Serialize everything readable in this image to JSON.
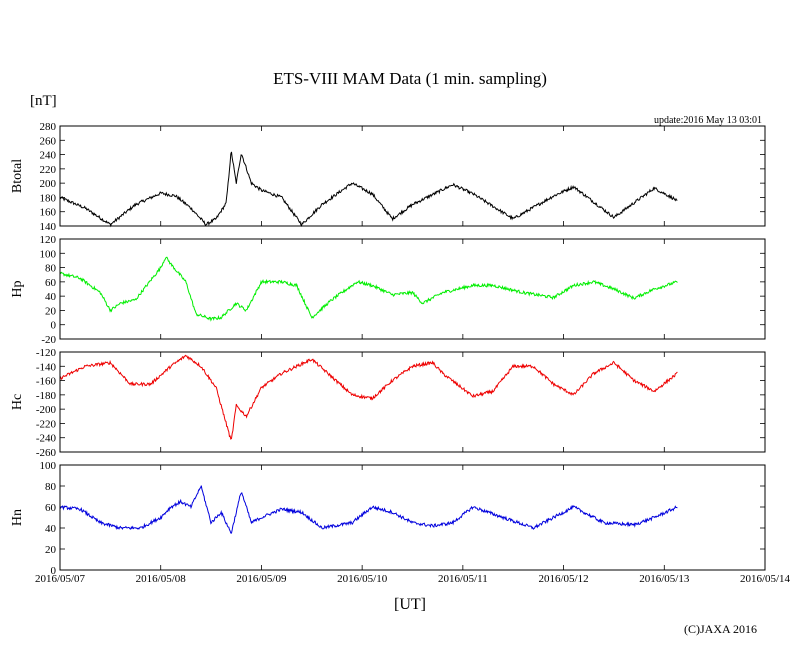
{
  "chart_data": {
    "type": "line",
    "title": "ETS-VIII MAM Data (1 min. sampling)",
    "unit_label": "[nT]",
    "update_text": "update:2016 May 13 03:01",
    "xlabel": "[UT]",
    "credit": "(C)JAXA 2016",
    "x_ticks": [
      "2016/05/07",
      "2016/05/08",
      "2016/05/09",
      "2016/05/10",
      "2016/05/11",
      "2016/05/12",
      "2016/05/13",
      "2016/05/14"
    ],
    "x_range_days": [
      0,
      7
    ],
    "data_end_day": 6.13,
    "series": [
      {
        "name": "Btotal",
        "color": "#000000",
        "ylim": [
          140,
          280
        ],
        "yticks": [
          "140",
          "160",
          "180",
          "200",
          "220",
          "240",
          "260",
          "280"
        ],
        "x": [
          0,
          0.25,
          0.5,
          0.75,
          1.0,
          1.15,
          1.3,
          1.45,
          1.55,
          1.65,
          1.7,
          1.75,
          1.8,
          1.9,
          2.0,
          2.2,
          2.4,
          2.6,
          2.9,
          3.1,
          3.3,
          3.5,
          3.9,
          4.1,
          4.5,
          4.9,
          5.1,
          5.5,
          5.9,
          6.1,
          6.13
        ],
        "values": [
          180,
          165,
          142,
          170,
          186,
          182,
          165,
          142,
          150,
          172,
          245,
          200,
          242,
          200,
          190,
          180,
          142,
          170,
          200,
          185,
          150,
          170,
          198,
          185,
          150,
          182,
          195,
          152,
          193,
          178,
          174
        ]
      },
      {
        "name": "Hp",
        "color": "#00ee00",
        "ylim": [
          -20,
          120
        ],
        "yticks": [
          "-20",
          "0",
          "20",
          "40",
          "60",
          "80",
          "100",
          "120"
        ],
        "x": [
          0,
          0.2,
          0.4,
          0.5,
          0.6,
          0.75,
          1.0,
          1.05,
          1.1,
          1.25,
          1.35,
          1.5,
          1.6,
          1.75,
          1.85,
          2.0,
          2.2,
          2.35,
          2.5,
          2.7,
          2.95,
          3.1,
          3.3,
          3.5,
          3.6,
          3.8,
          4.1,
          4.3,
          4.6,
          4.9,
          5.1,
          5.3,
          5.5,
          5.7,
          5.9,
          6.13
        ],
        "values": [
          72,
          65,
          45,
          20,
          30,
          35,
          80,
          95,
          85,
          60,
          15,
          8,
          10,
          30,
          20,
          60,
          60,
          55,
          10,
          35,
          60,
          55,
          42,
          45,
          30,
          45,
          55,
          55,
          45,
          38,
          55,
          60,
          50,
          37,
          50,
          60
        ]
      },
      {
        "name": "Hc",
        "color": "#ee0000",
        "ylim": [
          -260,
          -120
        ],
        "yticks": [
          "-260",
          "-240",
          "-220",
          "-200",
          "-180",
          "-160",
          "-140",
          "-120"
        ],
        "x": [
          0,
          0.25,
          0.5,
          0.7,
          0.9,
          1.1,
          1.25,
          1.4,
          1.55,
          1.7,
          1.75,
          1.85,
          2.0,
          2.2,
          2.5,
          2.9,
          3.1,
          3.3,
          3.5,
          3.7,
          3.8,
          4.1,
          4.3,
          4.5,
          4.7,
          4.9,
          5.1,
          5.3,
          5.5,
          5.7,
          5.9,
          6.13
        ],
        "values": [
          -157,
          -140,
          -135,
          -165,
          -165,
          -140,
          -125,
          -140,
          -170,
          -245,
          -195,
          -210,
          -170,
          -150,
          -130,
          -180,
          -185,
          -160,
          -140,
          -135,
          -150,
          -182,
          -175,
          -140,
          -140,
          -165,
          -180,
          -150,
          -135,
          -160,
          -175,
          -150
        ]
      },
      {
        "name": "Hn",
        "color": "#0000dd",
        "ylim": [
          0,
          100
        ],
        "yticks": [
          "0",
          "20",
          "40",
          "60",
          "80",
          "100"
        ],
        "x": [
          0,
          0.2,
          0.4,
          0.6,
          0.8,
          1.0,
          1.1,
          1.2,
          1.3,
          1.4,
          1.5,
          1.6,
          1.7,
          1.8,
          1.9,
          2.0,
          2.2,
          2.4,
          2.6,
          2.9,
          3.1,
          3.3,
          3.5,
          3.7,
          3.9,
          4.1,
          4.4,
          4.7,
          4.9,
          5.1,
          5.4,
          5.7,
          5.9,
          6.13
        ],
        "values": [
          60,
          58,
          45,
          40,
          40,
          50,
          60,
          65,
          60,
          80,
          45,
          55,
          35,
          75,
          45,
          50,
          58,
          55,
          40,
          45,
          60,
          55,
          45,
          42,
          45,
          60,
          50,
          40,
          50,
          60,
          45,
          43,
          50,
          60
        ]
      }
    ]
  }
}
